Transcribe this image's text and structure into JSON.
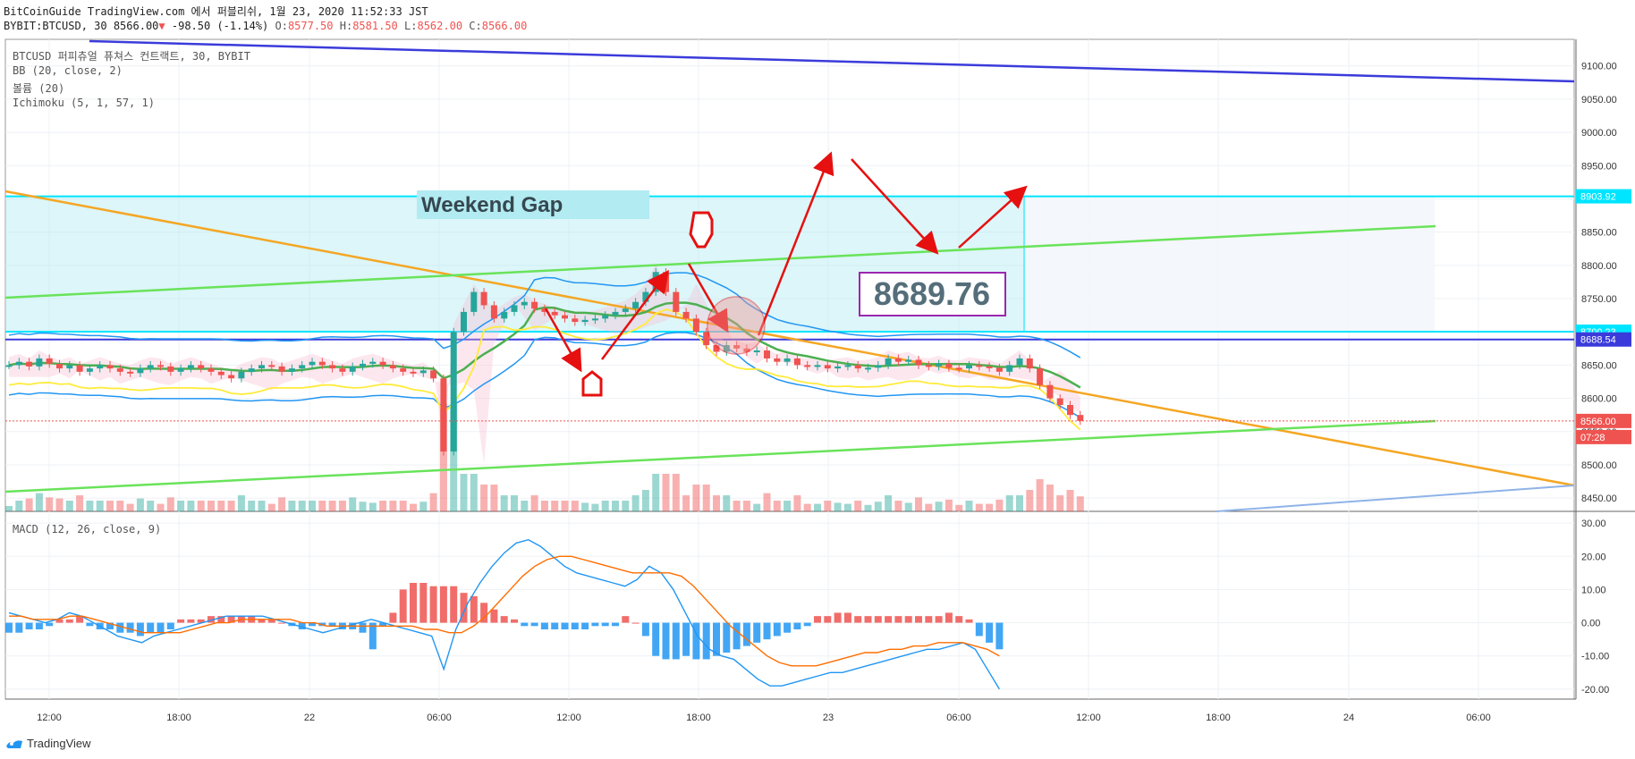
{
  "header": {
    "line1": "BitCoinGuide TradingView.com 에서 퍼블리쉬, 1월 23, 2020 11:52:33 JST",
    "symbol": "BYBIT:BTCUSD, 30",
    "last": "8566.00",
    "change_arrow": "▼",
    "change": "-98.50 (-1.14%)",
    "o_label": "O:",
    "o": "8577.50",
    "h_label": "H:",
    "h": "8581.50",
    "l_label": "L:",
    "l": "8562.00",
    "c_label": "C:",
    "c": "8566.00"
  },
  "legend": {
    "title": "BTCUSD 퍼피츄얼 퓨쳐스 컨트랙트, 30, BYBIT",
    "bb": "BB (20, close, 2)",
    "volume": "볼륨 (20)",
    "ichimoku": "Ichimoku (5, 1, 57, 1)",
    "macd": "MACD (12, 26, close, 9)"
  },
  "annotations": {
    "weekend_gap": "Weekend Gap",
    "price_box": "8689.76"
  },
  "footer": {
    "brand": "TradingView"
  },
  "colors": {
    "up": "#26a69a",
    "down": "#ef5350",
    "bb": "#2196f3",
    "ichimoku_conv": "#4caf50",
    "ichimoku_lead": "#ffeb3b",
    "gap_fill": "#b2ebf2",
    "gap_line": "#00e5ff",
    "trend_orange": "#f5a623",
    "trend_green": "#69e35a",
    "trend_blue": "#3b3bdb",
    "arrow": "#e61010",
    "macd": "#2196f3",
    "signal": "#ff6d00"
  },
  "chart_data": {
    "type": "line",
    "x_ticks": [
      "12:00",
      "18:00",
      "22",
      "06:00",
      "12:00",
      "18:00",
      "23",
      "06:00",
      "12:00",
      "18:00",
      "24",
      "06:00"
    ],
    "price_axis": {
      "ticks": [
        "9100.00",
        "9050.00",
        "9000.00",
        "8950.00",
        "8900.00",
        "8850.00",
        "8800.00",
        "8750.00",
        "8700.00",
        "8650.00",
        "8600.00",
        "8550.00",
        "8500.00",
        "8450.00"
      ],
      "ylim": [
        8430,
        9140
      ],
      "labels": [
        {
          "value": 8903.92,
          "text": "8903.92",
          "color": "#00e5ff"
        },
        {
          "value": 8700.23,
          "text": "8700.23",
          "color": "#00e5ff"
        },
        {
          "value": 8688.54,
          "text": "8688.54",
          "color": "#3b3bdb"
        },
        {
          "value": 8566.0,
          "text": "8566.00",
          "color": "#ef5350"
        }
      ],
      "countdown": "07:28"
    },
    "macd_axis": {
      "ticks": [
        "30.00",
        "20.00",
        "10.00",
        "0.00",
        "-10.00",
        "-20.00"
      ],
      "ylim": [
        -23,
        33
      ]
    },
    "weekend_gap": {
      "from": 8700.23,
      "to": 8903.92
    },
    "horizontal_line": 8688.54,
    "close_approx": [
      8650,
      8655,
      8648,
      8660,
      8652,
      8645,
      8650,
      8640,
      8645,
      8650,
      8645,
      8640,
      8638,
      8645,
      8650,
      8648,
      8640,
      8645,
      8650,
      8645,
      8640,
      8635,
      8630,
      8640,
      8645,
      8650,
      8648,
      8640,
      8645,
      8650,
      8655,
      8650,
      8645,
      8640,
      8648,
      8652,
      8655,
      8650,
      8645,
      8640,
      8638,
      8642,
      8630,
      8520,
      8700,
      8730,
      8760,
      8740,
      8720,
      8730,
      8740,
      8745,
      8735,
      8730,
      8725,
      8720,
      8715,
      8718,
      8720,
      8725,
      8730,
      8735,
      8745,
      8760,
      8790,
      8760,
      8730,
      8720,
      8700,
      8680,
      8670,
      8680,
      8675,
      8670,
      8672,
      8660,
      8655,
      8660,
      8650,
      8648,
      8650,
      8645,
      8648,
      8650,
      8645,
      8646,
      8650,
      8660,
      8655,
      8658,
      8650,
      8648,
      8652,
      8646,
      8645,
      8650,
      8648,
      8646,
      8640,
      8650,
      8660,
      8645,
      8620,
      8600,
      8590,
      8575,
      8566
    ],
    "macd_hist_approx": [
      -3,
      -3,
      -2,
      -2,
      -1,
      1,
      1,
      2,
      -1,
      -2,
      -2,
      -3,
      -3,
      -4,
      -3,
      -3,
      -2,
      1,
      1,
      1,
      2,
      2,
      2,
      2,
      2,
      1,
      1,
      0,
      -1,
      -2,
      -1,
      -1,
      -1,
      -2,
      -2,
      -3,
      -8,
      -1,
      3,
      10,
      12,
      12,
      11,
      11,
      11,
      9,
      8,
      6,
      4,
      2,
      1,
      -1,
      -1,
      -2,
      -2,
      -2,
      -2,
      -2,
      -1,
      -1,
      -1,
      2,
      0,
      -4,
      -10,
      -11,
      -11,
      -10,
      -11,
      -11,
      -10,
      -9,
      -8,
      -7,
      -6,
      -5,
      -4,
      -3,
      -2,
      -1,
      2,
      2,
      3,
      3,
      2,
      2,
      2,
      2,
      2,
      2,
      2,
      2,
      2,
      3,
      2,
      1,
      -4,
      -6,
      -8
    ],
    "macd_line_approx": [
      3,
      2,
      1,
      0,
      1,
      3,
      2,
      0,
      -2,
      -4,
      -5,
      -6,
      -4,
      -3,
      -2,
      -1,
      0,
      1,
      2,
      2,
      2,
      2,
      1,
      0,
      -1,
      -2,
      -3,
      -2,
      -1,
      0,
      1,
      0,
      -1,
      -2,
      -3,
      -4,
      -14,
      -2,
      6,
      12,
      17,
      21,
      24,
      25,
      23,
      20,
      17,
      15,
      14,
      13,
      12,
      11,
      13,
      17,
      15,
      10,
      3,
      -4,
      -8,
      -10,
      -11,
      -14,
      -17,
      -19,
      -19,
      -18,
      -17,
      -16,
      -15,
      -15,
      -14,
      -13,
      -12,
      -11,
      -10,
      -9,
      -8,
      -8,
      -7,
      -6,
      -8,
      -14,
      -20
    ],
    "signal_line_approx": [
      2,
      2,
      1,
      1,
      1,
      2,
      2,
      1,
      0,
      -1,
      -2,
      -3,
      -3,
      -3,
      -3,
      -2,
      -1,
      0,
      0,
      1,
      1,
      1,
      1,
      1,
      0,
      0,
      -1,
      -1,
      -1,
      -1,
      -1,
      -1,
      -1,
      -1,
      -2,
      -2,
      -3,
      -3,
      -1,
      2,
      6,
      10,
      14,
      17,
      19,
      20,
      20,
      19,
      18,
      17,
      16,
      15,
      15,
      15,
      15,
      14,
      11,
      7,
      3,
      -1,
      -4,
      -7,
      -10,
      -12,
      -13,
      -13,
      -13,
      -12,
      -11,
      -10,
      -9,
      -9,
      -8,
      -8,
      -7,
      -7,
      -6,
      -6,
      -6,
      -7,
      -8,
      -10
    ]
  }
}
